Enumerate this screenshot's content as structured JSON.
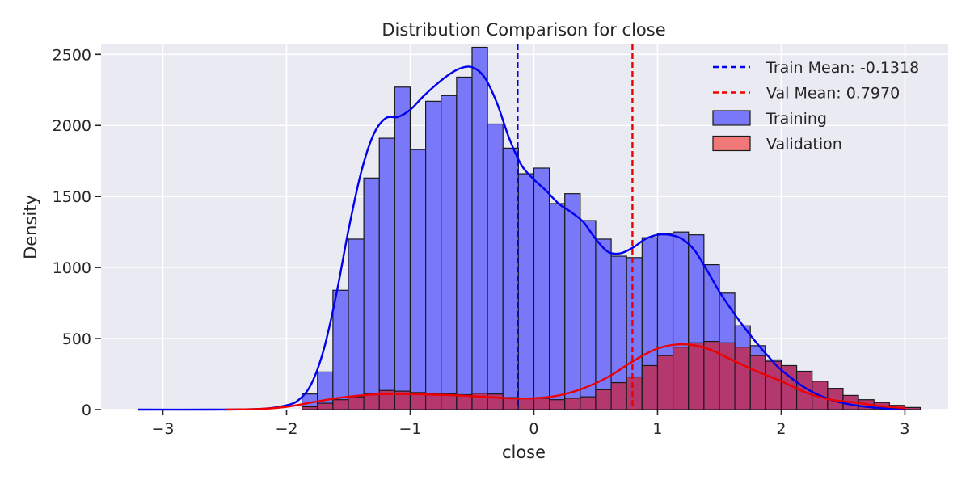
{
  "chart_data": {
    "type": "bar",
    "title": "Distribution Comparison for close",
    "xlabel": "close",
    "ylabel": "Density",
    "xlim": [
      -3.5,
      3.35
    ],
    "ylim": [
      0,
      2500
    ],
    "y_display_max": 2570,
    "xticks": [
      -3,
      -2,
      -1,
      0,
      1,
      2,
      3
    ],
    "xtick_labels": [
      "−3",
      "−2",
      "−1",
      "0",
      "1",
      "2",
      "3"
    ],
    "yticks": [
      0,
      500,
      1000,
      1500,
      2000,
      2500
    ],
    "ytick_labels": [
      "0",
      "500",
      "1000",
      "1500",
      "2000",
      "2500"
    ],
    "grid": true,
    "legend_position": "top-right",
    "colors": {
      "background": "#eaeaf2",
      "grid": "#ffffff",
      "train_fill": "#7878f8",
      "val_fill": "#f07878",
      "overlap_fill": "#b4386e",
      "train_line": "#0000ee",
      "val_line": "#ee0000",
      "bar_edge": "#1a1a1a"
    },
    "bin_width": 0.125,
    "series": [
      {
        "name": "Training",
        "kind": "histogram",
        "bin_start": -1.875,
        "values": [
          110,
          265,
          840,
          1200,
          1630,
          1910,
          2270,
          1830,
          2170,
          2210,
          2340,
          2550,
          2010,
          1840,
          1660,
          1700,
          1450,
          1520,
          1330,
          1200,
          1080,
          1070,
          1210,
          1240,
          1250,
          1230,
          1020,
          820,
          590,
          450,
          350,
          240,
          190,
          120,
          90,
          60,
          40,
          25,
          15,
          8
        ]
      },
      {
        "name": "Validation",
        "kind": "histogram",
        "bin_start": -1.875,
        "values": [
          20,
          45,
          70,
          90,
          110,
          135,
          130,
          120,
          115,
          110,
          105,
          115,
          110,
          85,
          80,
          80,
          70,
          80,
          90,
          140,
          190,
          230,
          310,
          380,
          440,
          470,
          480,
          470,
          440,
          380,
          340,
          310,
          270,
          200,
          150,
          100,
          70,
          50,
          30,
          15
        ]
      },
      {
        "name": "Training KDE",
        "kind": "kde",
        "x": [
          -3.2,
          -2.6,
          -2.2,
          -2.0,
          -1.9,
          -1.8,
          -1.7,
          -1.6,
          -1.5,
          -1.4,
          -1.3,
          -1.2,
          -1.1,
          -1.0,
          -0.9,
          -0.8,
          -0.7,
          -0.6,
          -0.5,
          -0.4,
          -0.3,
          -0.2,
          -0.1,
          0.0,
          0.1,
          0.2,
          0.3,
          0.4,
          0.5,
          0.6,
          0.7,
          0.8,
          0.9,
          1.0,
          1.1,
          1.2,
          1.3,
          1.4,
          1.5,
          1.6,
          1.7,
          1.8,
          1.9,
          2.0,
          2.2,
          2.4,
          2.6,
          2.8,
          3.0
        ],
        "y": [
          0,
          0,
          5,
          30,
          70,
          180,
          420,
          800,
          1260,
          1660,
          1930,
          2050,
          2060,
          2110,
          2200,
          2280,
          2350,
          2400,
          2410,
          2340,
          2160,
          1910,
          1720,
          1620,
          1540,
          1450,
          1390,
          1320,
          1200,
          1110,
          1100,
          1140,
          1200,
          1230,
          1230,
          1200,
          1120,
          980,
          830,
          700,
          580,
          470,
          370,
          280,
          150,
          70,
          30,
          10,
          0
        ]
      },
      {
        "name": "Validation KDE",
        "kind": "kde",
        "x": [
          -2.5,
          -2.2,
          -2.0,
          -1.8,
          -1.6,
          -1.4,
          -1.2,
          -1.0,
          -0.8,
          -0.6,
          -0.4,
          -0.2,
          0.0,
          0.2,
          0.4,
          0.6,
          0.8,
          1.0,
          1.2,
          1.4,
          1.6,
          1.8,
          2.0,
          2.2,
          2.4,
          2.6,
          2.8,
          3.0
        ],
        "y": [
          0,
          5,
          20,
          50,
          80,
          100,
          110,
          110,
          105,
          100,
          90,
          80,
          80,
          100,
          150,
          230,
          340,
          430,
          460,
          430,
          350,
          270,
          200,
          120,
          70,
          50,
          25,
          10
        ]
      },
      {
        "name": "Train Mean: -0.1318",
        "kind": "vline",
        "x": -0.1318
      },
      {
        "name": "Val Mean: 0.7970",
        "kind": "vline",
        "x": 0.797
      }
    ],
    "legend": [
      {
        "label": "Train Mean: -0.1318",
        "style": "dashed-line",
        "color": "#0000ee"
      },
      {
        "label": "Val Mean: 0.7970",
        "style": "dashed-line",
        "color": "#ee0000"
      },
      {
        "label": "Training",
        "style": "patch",
        "color": "#7878f8"
      },
      {
        "label": "Validation",
        "style": "patch",
        "color": "#f07878"
      }
    ]
  }
}
